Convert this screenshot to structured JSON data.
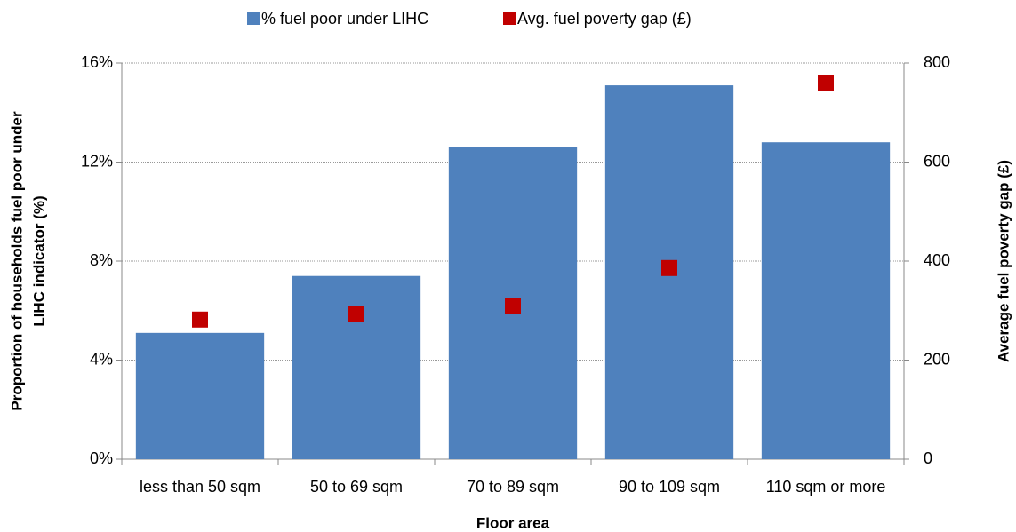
{
  "chart_data": {
    "type": "bar_scatter",
    "x_label": "Floor area",
    "y_label": [
      "Proportion of households fuel poor under",
      "LIHC indicator (%)"
    ],
    "y2_label": "Average fuel poverty gap (£)",
    "categories": [
      "less than 50 sqm",
      "50 to 69 sqm",
      "70 to 89 sqm",
      "90 to 109 sqm",
      "110 sqm or more"
    ],
    "series": [
      {
        "name": "% fuel poor under LIHC",
        "color": "#4f81bd",
        "type": "bar",
        "values": [
          5.1,
          7.4,
          12.6,
          15.1,
          12.8
        ]
      },
      {
        "name": "Avg. fuel poverty gap (£)",
        "color": "#c00000",
        "type": "scatter",
        "axis": "y2",
        "values": [
          282,
          294,
          310,
          386,
          759
        ]
      }
    ],
    "ylim": [
      0,
      16
    ],
    "yticks": [
      {
        "value": 0,
        "label": "0%"
      },
      {
        "value": 4,
        "label": "4%"
      },
      {
        "value": 8,
        "label": "8%"
      },
      {
        "value": 12,
        "label": "12%"
      },
      {
        "value": 16,
        "label": "16%"
      }
    ],
    "y2lim": [
      0,
      800
    ],
    "y2ticks": [
      0,
      200,
      400,
      600,
      800
    ],
    "grid": true,
    "legend": "top"
  }
}
